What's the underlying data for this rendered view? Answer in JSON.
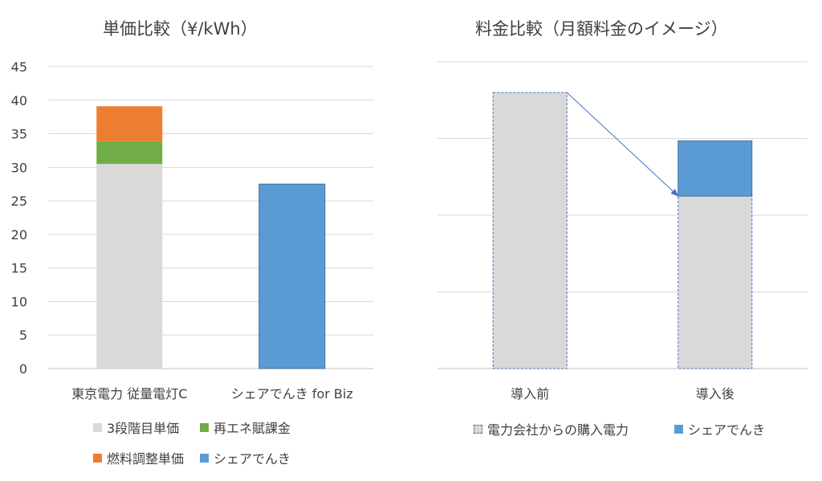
{
  "chart_data": [
    {
      "type": "bar",
      "stacked": true,
      "title": "単価比較（¥/kWh）",
      "categories": [
        "東京電力 従量電灯C",
        "シェアでんき for Biz"
      ],
      "ylim": [
        0,
        45
      ],
      "yticks": [
        "0",
        "5",
        "10",
        "15",
        "20",
        "25",
        "30",
        "35",
        "40",
        "45"
      ],
      "grid": true,
      "legend_position": "bottom",
      "series": [
        {
          "name": "3段階目単価",
          "values": [
            30.5,
            0
          ],
          "color": "#D9D9D9"
        },
        {
          "name": "再エネ賦課金",
          "values": [
            3.4,
            0
          ],
          "color": "#70AD47"
        },
        {
          "name": "燃料調整単価",
          "values": [
            5.2,
            0
          ],
          "color": "#ED7D31"
        },
        {
          "name": "シェアでんき",
          "values": [
            0,
            27.5
          ],
          "color": "#5B9BD5"
        }
      ]
    },
    {
      "type": "bar",
      "stacked": true,
      "title": "料金比較（月額料金のイメージ）",
      "categories": [
        "導入前",
        "導入後"
      ],
      "ylim": [
        0,
        4
      ],
      "grid": true,
      "axis_labels_shown": false,
      "legend_position": "bottom",
      "annotation": "arrow from top of 導入前 bar to top of grey segment of 導入後 bar",
      "series": [
        {
          "name": "電力会社からの購入電力",
          "values": [
            3.6,
            2.25
          ],
          "color": "#D9D9D9"
        },
        {
          "name": "シェアでんき",
          "values": [
            0,
            0.72
          ],
          "color": "#5B9BD5"
        }
      ]
    }
  ]
}
